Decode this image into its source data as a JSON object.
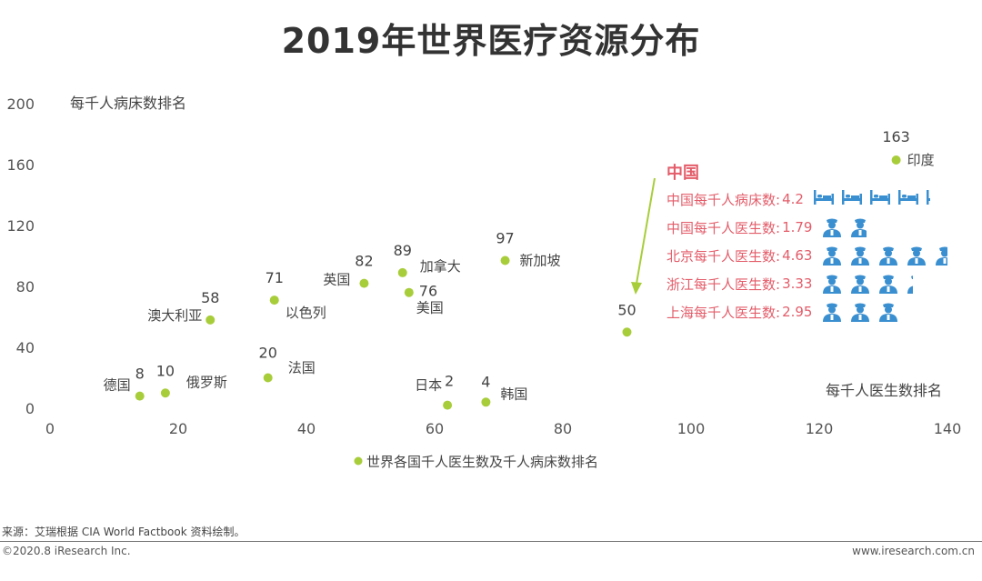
{
  "title": "2019年世界医疗资源分布",
  "chart_data": {
    "type": "scatter",
    "xlabel": "每千人医生数排名",
    "ylabel": "每千人病床数排名",
    "xlim": [
      0,
      140
    ],
    "ylim": [
      0,
      200
    ],
    "xticks": [
      0,
      20,
      40,
      60,
      80,
      100,
      120,
      140
    ],
    "yticks": [
      0,
      40,
      80,
      120,
      160,
      200
    ],
    "grid": false,
    "legend": "世界各国千人医生数及千人病床数排名",
    "series": [
      {
        "name": "世界各国千人医生数及千人病床数排名",
        "color": "#a8cd3a",
        "points": [
          {
            "country": "德国",
            "x": 14,
            "y": 8,
            "label": "8"
          },
          {
            "country": "俄罗斯",
            "x": 18,
            "y": 10,
            "label": "10"
          },
          {
            "country": "澳大利亚",
            "x": 25,
            "y": 58,
            "label": "58"
          },
          {
            "country": "法国",
            "x": 34,
            "y": 20,
            "label": "20"
          },
          {
            "country": "以色列",
            "x": 35,
            "y": 71,
            "label": "71"
          },
          {
            "country": "英国",
            "x": 49,
            "y": 82,
            "label": "82"
          },
          {
            "country": "加拿大",
            "x": 55,
            "y": 89,
            "label": "89"
          },
          {
            "country": "美国",
            "x": 56,
            "y": 76,
            "label": "76"
          },
          {
            "country": "日本",
            "x": 62,
            "y": 2,
            "label": "2"
          },
          {
            "country": "韩国",
            "x": 68,
            "y": 4,
            "label": "4"
          },
          {
            "country": "新加坡",
            "x": 71,
            "y": 97,
            "label": "97"
          },
          {
            "country": "中国",
            "x": 90,
            "y": 50,
            "label": "50"
          },
          {
            "country": "印度",
            "x": 132,
            "y": 163,
            "label": "163"
          }
        ]
      }
    ],
    "annotation": {
      "title": "中国",
      "rows": [
        {
          "label": "中国每千人病床数:",
          "value": "4.2",
          "icon": "bed-icon",
          "count": 4.2
        },
        {
          "label": "中国每千人医生数:",
          "value": "1.79",
          "icon": "doctor-icon",
          "count": 1.79
        },
        {
          "label": "北京每千人医生数:",
          "value": "4.63",
          "icon": "doctor-icon",
          "count": 4.63
        },
        {
          "label": "浙江每千人医生数:",
          "value": "3.33",
          "icon": "doctor-icon",
          "count": 3.33
        },
        {
          "label": "上海每千人医生数:",
          "value": "2.95",
          "icon": "doctor-icon",
          "count": 2.95
        }
      ]
    }
  },
  "footer": {
    "source": "来源：艾瑞根据 CIA World Factbook 资料绘制。",
    "copyright": "©2020.8 iResearch Inc.",
    "website": "www.iresearch.com.cn"
  },
  "colors": {
    "point": "#a8cd3a",
    "china": "#e35d6a",
    "icon": "#3a8fd0",
    "arrow": "#a8cd3a"
  }
}
